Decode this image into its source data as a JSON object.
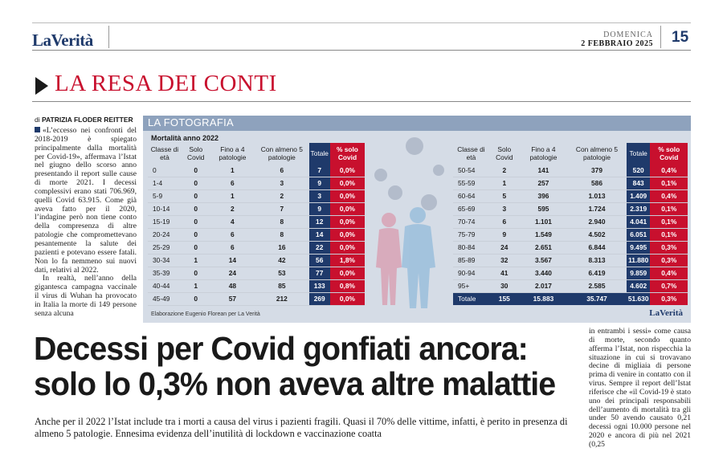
{
  "header": {
    "logo_la": "La",
    "logo_verita": "Verità",
    "day": "DOMENICA",
    "date": "2 FEBBRAIO 2025",
    "page": "15"
  },
  "section": {
    "title": "LA RESA DEI CONTI"
  },
  "byline": {
    "prefix": "di ",
    "author": "PATRIZIA FLODER REITTER"
  },
  "left_column": {
    "p1": "«L’eccesso nei confronti del 2018-2019 è spiegato principalmente dalla mortalità per Covid-19», affermava l’Istat nel giugno dello scorso anno presentando il report sulle cause di morte 2021. I decessi complessivi erano stati 706.969, quelli Covid 63.915. Come già aveva fatto per il 2020, l’indagine però non tiene conto della compresenza di altre patologie che compromettevano pesantemente la salute dei pazienti e potevano essere fatali. Non lo fa nemmeno sui nuovi dati, relativi al 2022.",
    "p2": "In realtà, nell’anno della gigantesca campagna vaccinale il virus di Wuhan ha provocato in Italia la morte di 149 persone senza alcuna"
  },
  "infographic": {
    "header": "LA FOTOGRAFIA",
    "subtitle": "Mortalità anno 2022",
    "columns": [
      "Classe di età",
      "Solo Covid",
      "Fino a 4 patologie",
      "Con almeno 5 patologie",
      "Totale",
      "% solo Covid"
    ],
    "table_left": [
      [
        "0",
        "0",
        "1",
        "6",
        "7",
        "0,0%"
      ],
      [
        "1-4",
        "0",
        "6",
        "3",
        "9",
        "0,0%"
      ],
      [
        "5-9",
        "0",
        "1",
        "2",
        "3",
        "0,0%"
      ],
      [
        "10-14",
        "0",
        "2",
        "7",
        "9",
        "0,0%"
      ],
      [
        "15-19",
        "0",
        "4",
        "8",
        "12",
        "0,0%"
      ],
      [
        "20-24",
        "0",
        "6",
        "8",
        "14",
        "0,0%"
      ],
      [
        "25-29",
        "0",
        "6",
        "16",
        "22",
        "0,0%"
      ],
      [
        "30-34",
        "1",
        "14",
        "42",
        "56",
        "1,8%"
      ],
      [
        "35-39",
        "0",
        "24",
        "53",
        "77",
        "0,0%"
      ],
      [
        "40-44",
        "1",
        "48",
        "85",
        "133",
        "0,8%"
      ],
      [
        "45-49",
        "0",
        "57",
        "212",
        "269",
        "0,0%"
      ]
    ],
    "table_right": [
      [
        "50-54",
        "2",
        "141",
        "379",
        "520",
        "0,4%"
      ],
      [
        "55-59",
        "1",
        "257",
        "586",
        "843",
        "0,1%"
      ],
      [
        "60-64",
        "5",
        "396",
        "1.013",
        "1.409",
        "0,4%"
      ],
      [
        "65-69",
        "3",
        "595",
        "1.724",
        "2.319",
        "0,1%"
      ],
      [
        "70-74",
        "6",
        "1.101",
        "2.940",
        "4.041",
        "0,1%"
      ],
      [
        "75-79",
        "9",
        "1.549",
        "4.502",
        "6.051",
        "0,1%"
      ],
      [
        "80-84",
        "24",
        "2.651",
        "6.844",
        "9.495",
        "0,3%"
      ],
      [
        "85-89",
        "32",
        "3.567",
        "8.313",
        "11.880",
        "0,3%"
      ],
      [
        "90-94",
        "41",
        "3.440",
        "6.419",
        "9.859",
        "0,4%"
      ],
      [
        "95+",
        "30",
        "2.017",
        "2.585",
        "4.602",
        "0,7%"
      ]
    ],
    "total_row": [
      "Totale",
      "155",
      "15.883",
      "35.747",
      "51.630",
      "0,3%"
    ],
    "credit": "Elaborazione Eugenio Florean per La Verità",
    "brand": "LaVerità"
  },
  "headline": {
    "line1": "Decessi per Covid gonfiati ancora:",
    "line2": "solo lo 0,3% non aveva altre malattie"
  },
  "subhead": "Anche per il 2022 l’Istat include tra i morti a causa del virus i pazienti fragili. Quasi il 70% delle vittime, infatti, è perito in presenza di almeno 5 patologie. Ennesima evidenza dell’inutilità di lockdown e vaccinazione coatta",
  "right_column": "in entrambi i sessi» come causa di morte, secondo quanto afferma l’Istat, non rispecchia la situazione in cui si trovavano decine di migliaia di persone prima di venire in contatto con il virus. Sempre il report dell’Istat riferisce che «il Covid-19 è stato uno dei principali responsabili dell’aumento di mortalità tra gli under 50 avendo causato 0,21 decessi ogni 10.000 persone nel 2020 e ancora di più nel 2021 (0,25",
  "colors": {
    "brand_blue": "#1f3a6b",
    "accent_red": "#c8102e",
    "panel_bg": "#d5dce6",
    "panel_header": "#8ea2bd"
  }
}
